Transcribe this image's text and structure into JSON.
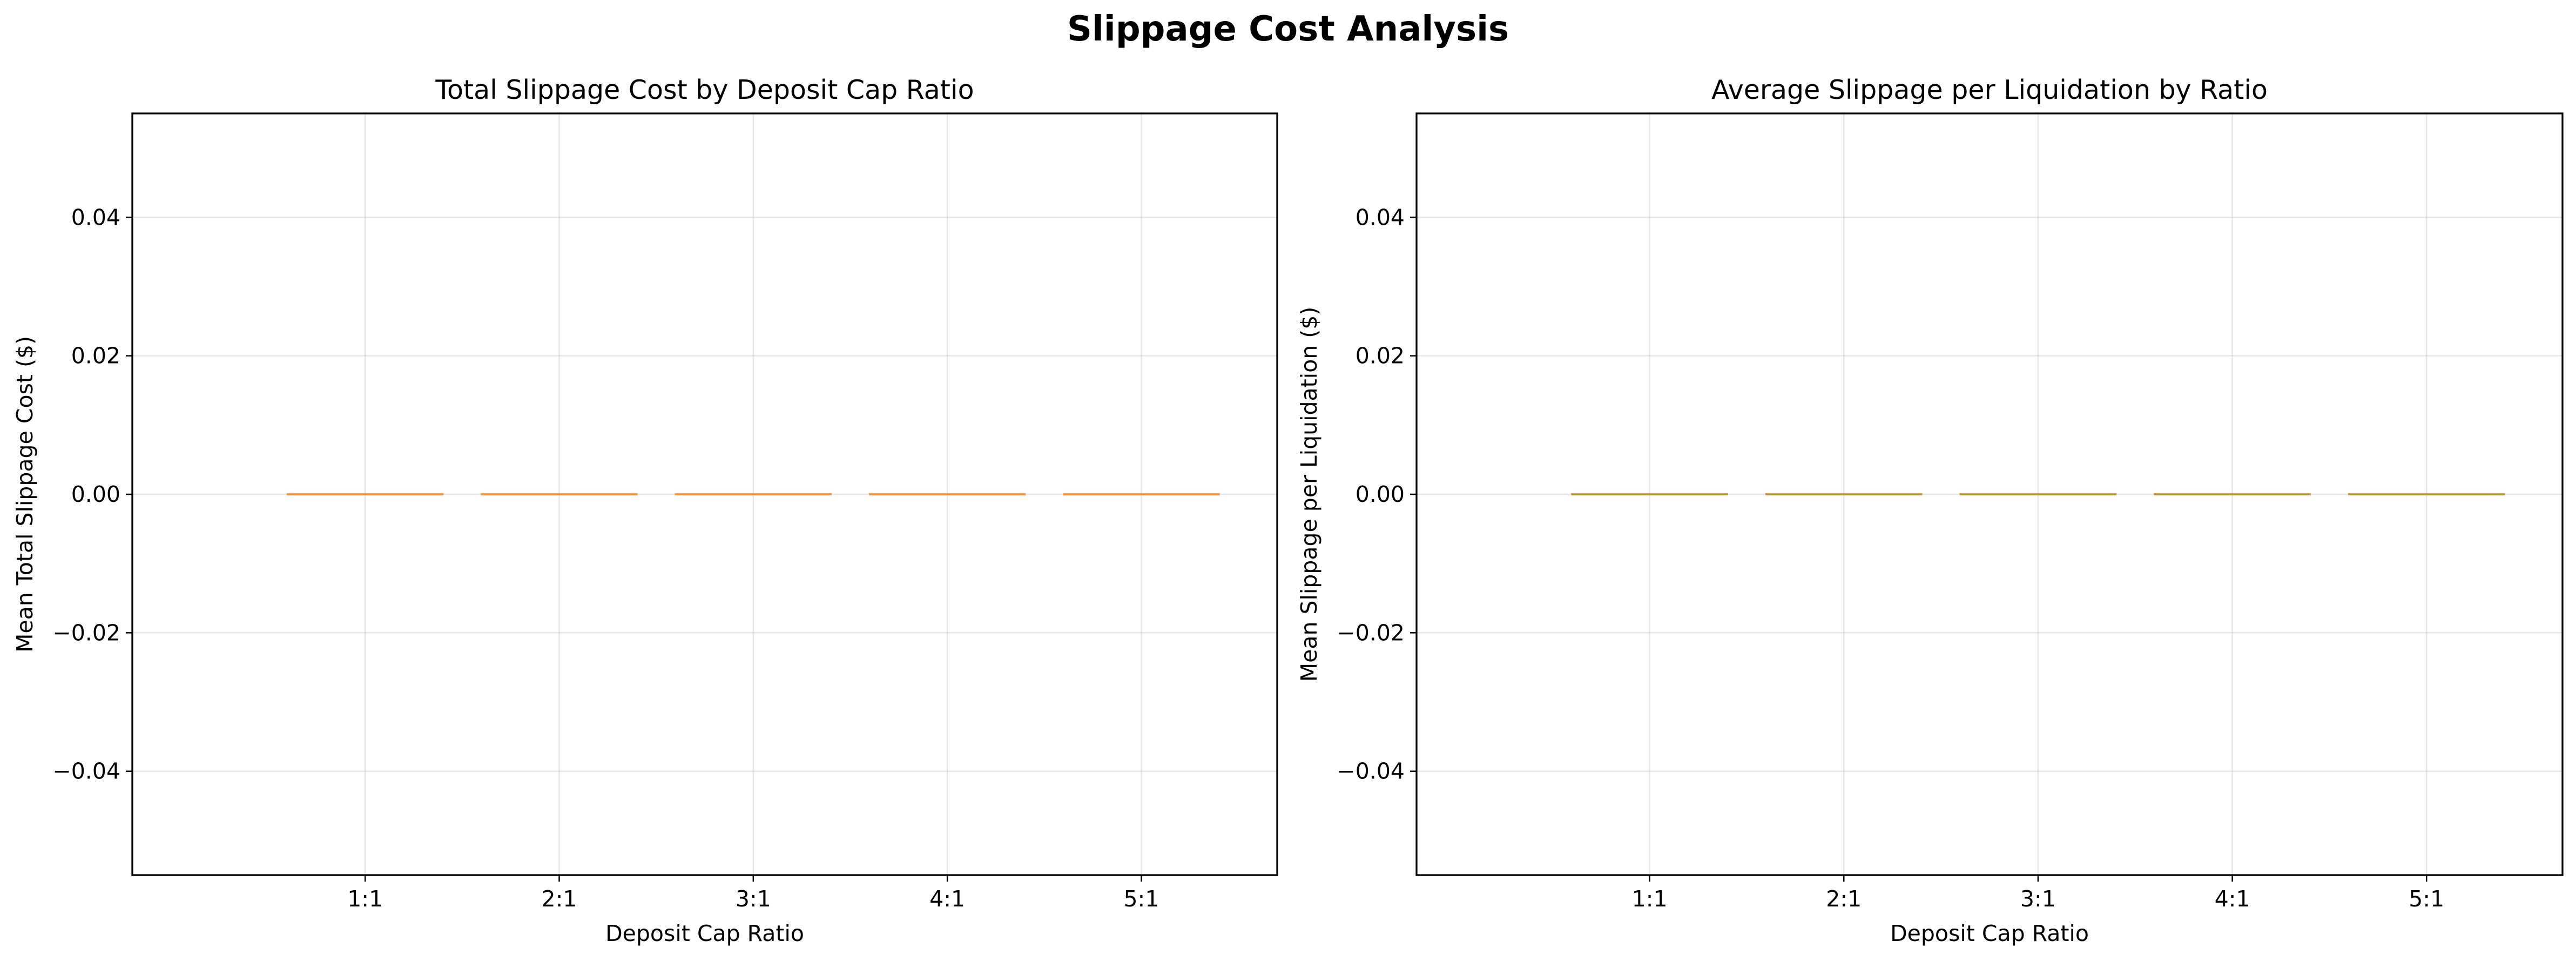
{
  "suptitle": "Slippage Cost Analysis",
  "chart_data": [
    {
      "type": "bar",
      "title": "Total Slippage Cost by Deposit Cap Ratio",
      "xlabel": "Deposit Cap Ratio",
      "ylabel": "Mean Total Slippage Cost ($)",
      "categories": [
        "1:1",
        "2:1",
        "3:1",
        "4:1",
        "5:1"
      ],
      "values": [
        0,
        0,
        0,
        0,
        0
      ],
      "ylim": [
        -0.055,
        0.055
      ],
      "yticks": [
        -0.04,
        -0.02,
        0.0,
        0.02,
        0.04
      ],
      "ytick_labels": [
        "−0.04",
        "−0.02",
        "0.00",
        "0.02",
        "0.04"
      ],
      "grid": true,
      "bar_color": "#ff7f0e"
    },
    {
      "type": "bar",
      "title": "Average Slippage per Liquidation by Ratio",
      "xlabel": "Deposit Cap Ratio",
      "ylabel": "Mean Slippage per Liquidation ($)",
      "categories": [
        "1:1",
        "2:1",
        "3:1",
        "4:1",
        "5:1"
      ],
      "values": [
        0,
        0,
        0,
        0,
        0
      ],
      "ylim": [
        -0.055,
        0.055
      ],
      "yticks": [
        -0.04,
        -0.02,
        0.0,
        0.02,
        0.04
      ],
      "ytick_labels": [
        "−0.04",
        "−0.02",
        "0.00",
        "0.02",
        "0.04"
      ],
      "grid": true,
      "bar_color": "#b8860b"
    }
  ]
}
